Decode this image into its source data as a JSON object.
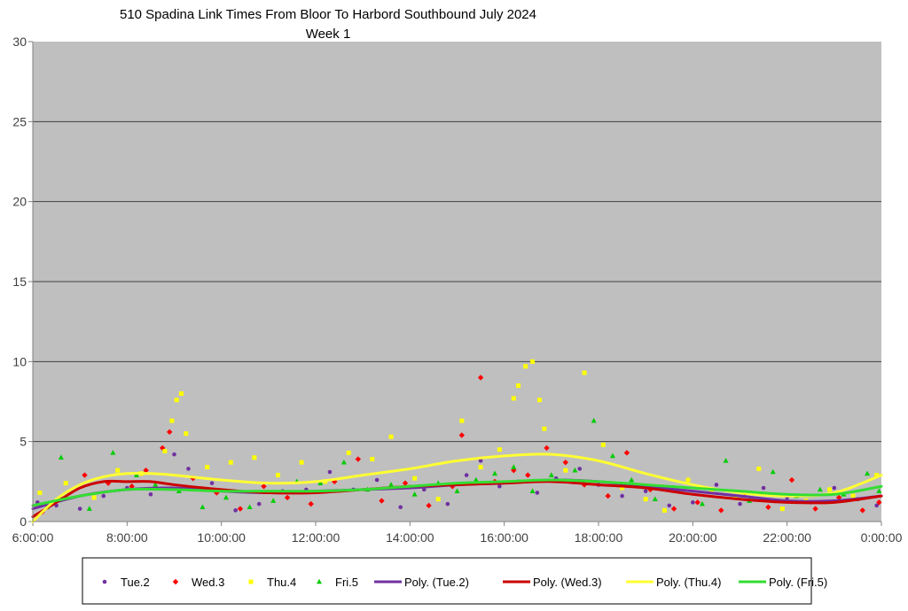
{
  "chart_data": {
    "type": "scatter",
    "title": "510 Spadina Link Times From Bloor To Harbord Southbound July 2024",
    "subtitle": "Week 1",
    "xlabel": "",
    "ylabel": "",
    "xlim": [
      6,
      24
    ],
    "ylim": [
      0,
      30
    ],
    "x_ticks": [
      "6:00:00",
      "8:00:00",
      "10:00:00",
      "12:00:00",
      "14:00:00",
      "16:00:00",
      "18:00:00",
      "20:00:00",
      "22:00:00",
      "0:00:00"
    ],
    "x_tick_values": [
      6,
      8,
      10,
      12,
      14,
      16,
      18,
      20,
      22,
      24
    ],
    "y_ticks": [
      "0",
      "5",
      "10",
      "15",
      "20",
      "25",
      "30"
    ],
    "y_tick_values": [
      0,
      5,
      10,
      15,
      20,
      25,
      30
    ],
    "grid": "horizontal",
    "legend_position": "bottom",
    "series": [
      {
        "name": "Tue.2",
        "marker": "circle",
        "color": "#7030A0",
        "points": [
          [
            6.1,
            1.2
          ],
          [
            6.5,
            1.0
          ],
          [
            7.0,
            0.8
          ],
          [
            7.5,
            1.6
          ],
          [
            8.0,
            2.1
          ],
          [
            8.5,
            1.7
          ],
          [
            9.0,
            4.2
          ],
          [
            9.3,
            3.3
          ],
          [
            9.8,
            2.4
          ],
          [
            10.3,
            0.7
          ],
          [
            10.8,
            1.1
          ],
          [
            11.3,
            1.9
          ],
          [
            11.8,
            2.0
          ],
          [
            12.3,
            3.1
          ],
          [
            12.8,
            2.0
          ],
          [
            13.3,
            2.6
          ],
          [
            13.8,
            0.9
          ],
          [
            14.3,
            2.0
          ],
          [
            14.8,
            1.1
          ],
          [
            15.2,
            2.9
          ],
          [
            15.5,
            3.8
          ],
          [
            15.9,
            2.2
          ],
          [
            16.3,
            2.5
          ],
          [
            16.7,
            1.8
          ],
          [
            17.1,
            2.7
          ],
          [
            17.6,
            3.3
          ],
          [
            18.0,
            2.3
          ],
          [
            18.5,
            1.6
          ],
          [
            19.0,
            1.9
          ],
          [
            19.5,
            1.0
          ],
          [
            20.0,
            1.2
          ],
          [
            20.5,
            2.3
          ],
          [
            21.0,
            1.1
          ],
          [
            21.5,
            2.1
          ],
          [
            22.0,
            1.5
          ],
          [
            22.5,
            1.2
          ],
          [
            23.0,
            2.1
          ],
          [
            23.5,
            1.4
          ],
          [
            23.9,
            1.0
          ]
        ],
        "trend": [
          [
            6,
            0.8
          ],
          [
            7,
            1.6
          ],
          [
            8,
            2.0
          ],
          [
            9,
            2.1
          ],
          [
            10,
            1.9
          ],
          [
            11,
            1.8
          ],
          [
            12,
            1.9
          ],
          [
            13,
            2.0
          ],
          [
            14,
            2.1
          ],
          [
            15,
            2.3
          ],
          [
            16,
            2.4
          ],
          [
            17,
            2.6
          ],
          [
            18,
            2.5
          ],
          [
            19,
            2.2
          ],
          [
            20,
            1.9
          ],
          [
            21,
            1.6
          ],
          [
            22,
            1.3
          ],
          [
            23,
            1.3
          ],
          [
            24,
            1.6
          ]
        ]
      },
      {
        "name": "Wed.3",
        "marker": "diamond",
        "color": "#FF0000",
        "points": [
          [
            6.2,
            0.6
          ],
          [
            6.6,
            1.4
          ],
          [
            7.1,
            2.9
          ],
          [
            7.6,
            2.4
          ],
          [
            8.1,
            2.2
          ],
          [
            8.4,
            3.2
          ],
          [
            8.75,
            4.6
          ],
          [
            8.9,
            5.6
          ],
          [
            9.4,
            2.7
          ],
          [
            9.9,
            1.8
          ],
          [
            10.4,
            0.8
          ],
          [
            10.9,
            2.2
          ],
          [
            11.4,
            1.5
          ],
          [
            11.9,
            1.1
          ],
          [
            12.4,
            2.5
          ],
          [
            12.9,
            3.9
          ],
          [
            13.4,
            1.3
          ],
          [
            13.9,
            2.4
          ],
          [
            14.4,
            1.0
          ],
          [
            14.9,
            2.2
          ],
          [
            15.1,
            5.4
          ],
          [
            15.5,
            9.0
          ],
          [
            15.8,
            2.5
          ],
          [
            16.2,
            3.2
          ],
          [
            16.5,
            2.9
          ],
          [
            16.9,
            4.6
          ],
          [
            17.3,
            3.7
          ],
          [
            17.7,
            2.3
          ],
          [
            18.2,
            1.6
          ],
          [
            18.6,
            4.3
          ],
          [
            19.1,
            2.0
          ],
          [
            19.6,
            0.8
          ],
          [
            20.1,
            1.2
          ],
          [
            20.6,
            0.7
          ],
          [
            21.1,
            1.8
          ],
          [
            21.6,
            0.9
          ],
          [
            22.1,
            2.6
          ],
          [
            22.6,
            0.8
          ],
          [
            23.1,
            1.5
          ],
          [
            23.6,
            0.7
          ],
          [
            23.95,
            1.2
          ]
        ],
        "trend": [
          [
            6,
            0.3
          ],
          [
            6.5,
            1.2
          ],
          [
            7,
            2.1
          ],
          [
            7.5,
            2.5
          ],
          [
            8,
            2.5
          ],
          [
            8.5,
            2.5
          ],
          [
            9,
            2.3
          ],
          [
            10,
            2.0
          ],
          [
            11,
            1.8
          ],
          [
            12,
            1.8
          ],
          [
            13,
            2.0
          ],
          [
            14,
            2.2
          ],
          [
            15,
            2.3
          ],
          [
            16,
            2.4
          ],
          [
            17,
            2.5
          ],
          [
            18,
            2.3
          ],
          [
            19,
            2.1
          ],
          [
            20,
            1.7
          ],
          [
            21,
            1.4
          ],
          [
            22,
            1.2
          ],
          [
            23,
            1.2
          ],
          [
            24,
            1.6
          ]
        ]
      },
      {
        "name": "Thu.4",
        "marker": "square",
        "color": "#FFFF00",
        "points": [
          [
            6.15,
            1.8
          ],
          [
            6.7,
            2.4
          ],
          [
            7.3,
            1.5
          ],
          [
            7.8,
            3.2
          ],
          [
            8.3,
            3.0
          ],
          [
            8.8,
            4.4
          ],
          [
            8.95,
            6.3
          ],
          [
            9.05,
            7.6
          ],
          [
            9.15,
            8.0
          ],
          [
            9.25,
            5.5
          ],
          [
            9.7,
            3.4
          ],
          [
            10.2,
            3.7
          ],
          [
            10.7,
            4.0
          ],
          [
            11.2,
            2.9
          ],
          [
            11.7,
            3.7
          ],
          [
            12.2,
            2.5
          ],
          [
            12.7,
            4.3
          ],
          [
            13.2,
            3.9
          ],
          [
            13.6,
            5.3
          ],
          [
            14.1,
            2.7
          ],
          [
            14.6,
            1.4
          ],
          [
            15.1,
            6.3
          ],
          [
            15.5,
            3.4
          ],
          [
            15.9,
            4.5
          ],
          [
            16.2,
            7.7
          ],
          [
            16.3,
            8.5
          ],
          [
            16.45,
            9.7
          ],
          [
            16.6,
            10.0
          ],
          [
            16.75,
            7.6
          ],
          [
            16.85,
            5.8
          ],
          [
            17.3,
            3.2
          ],
          [
            17.7,
            9.3
          ],
          [
            18.1,
            4.8
          ],
          [
            18.5,
            2.1
          ],
          [
            19.0,
            1.4
          ],
          [
            19.4,
            0.7
          ],
          [
            19.9,
            2.6
          ],
          [
            20.4,
            2.0
          ],
          [
            20.9,
            1.5
          ],
          [
            21.4,
            3.3
          ],
          [
            21.9,
            0.8
          ],
          [
            22.4,
            1.3
          ],
          [
            22.9,
            2.0
          ],
          [
            23.4,
            1.6
          ],
          [
            23.9,
            2.9
          ]
        ],
        "trend": [
          [
            6,
            0
          ],
          [
            6.5,
            1.4
          ],
          [
            7,
            2.3
          ],
          [
            7.5,
            2.8
          ],
          [
            8,
            3.0
          ],
          [
            8.5,
            3.0
          ],
          [
            9,
            2.9
          ],
          [
            10,
            2.6
          ],
          [
            11,
            2.4
          ],
          [
            12,
            2.5
          ],
          [
            13,
            2.9
          ],
          [
            14,
            3.3
          ],
          [
            15,
            3.8
          ],
          [
            16,
            4.1
          ],
          [
            17,
            4.2
          ],
          [
            18,
            3.8
          ],
          [
            19,
            3.0
          ],
          [
            20,
            2.3
          ],
          [
            21,
            1.8
          ],
          [
            22,
            1.6
          ],
          [
            23,
            1.8
          ],
          [
            24,
            2.9
          ]
        ]
      },
      {
        "name": "Fri.5",
        "marker": "triangle",
        "color": "#00CC00",
        "points": [
          [
            6.3,
            0.9
          ],
          [
            6.6,
            4.0
          ],
          [
            7.2,
            0.8
          ],
          [
            7.7,
            4.3
          ],
          [
            8.2,
            2.9
          ],
          [
            8.6,
            2.3
          ],
          [
            9.1,
            1.9
          ],
          [
            9.6,
            0.9
          ],
          [
            10.1,
            1.5
          ],
          [
            10.6,
            0.9
          ],
          [
            11.1,
            1.3
          ],
          [
            11.6,
            2.5
          ],
          [
            12.1,
            2.4
          ],
          [
            12.6,
            3.7
          ],
          [
            13.1,
            2.0
          ],
          [
            13.6,
            2.3
          ],
          [
            14.1,
            1.7
          ],
          [
            14.6,
            2.4
          ],
          [
            15.0,
            1.9
          ],
          [
            15.4,
            2.6
          ],
          [
            15.8,
            3.0
          ],
          [
            16.2,
            3.4
          ],
          [
            16.6,
            1.9
          ],
          [
            17.0,
            2.9
          ],
          [
            17.5,
            3.2
          ],
          [
            17.9,
            6.3
          ],
          [
            18.3,
            4.1
          ],
          [
            18.7,
            2.6
          ],
          [
            19.2,
            1.4
          ],
          [
            19.7,
            1.9
          ],
          [
            20.2,
            1.1
          ],
          [
            20.7,
            3.8
          ],
          [
            21.2,
            1.3
          ],
          [
            21.7,
            3.1
          ],
          [
            22.2,
            1.6
          ],
          [
            22.7,
            2.0
          ],
          [
            23.2,
            1.7
          ],
          [
            23.7,
            3.0
          ],
          [
            23.95,
            1.9
          ]
        ],
        "trend": [
          [
            6,
            1.0
          ],
          [
            7,
            1.6
          ],
          [
            8,
            2.0
          ],
          [
            9,
            2.0
          ],
          [
            10,
            1.9
          ],
          [
            11,
            1.9
          ],
          [
            12,
            1.9
          ],
          [
            13,
            2.0
          ],
          [
            14,
            2.2
          ],
          [
            15,
            2.4
          ],
          [
            16,
            2.5
          ],
          [
            17,
            2.6
          ],
          [
            18,
            2.5
          ],
          [
            19,
            2.3
          ],
          [
            20,
            2.1
          ],
          [
            21,
            1.9
          ],
          [
            22,
            1.7
          ],
          [
            23,
            1.7
          ],
          [
            24,
            2.2
          ]
        ]
      }
    ],
    "legend": [
      {
        "label": "Tue.2",
        "kind": "marker",
        "marker": "circle",
        "color": "#7030A0"
      },
      {
        "label": "Wed.3",
        "kind": "marker",
        "marker": "diamond",
        "color": "#FF0000"
      },
      {
        "label": "Thu.4",
        "kind": "marker",
        "marker": "square",
        "color": "#FFFF00"
      },
      {
        "label": "Fri.5",
        "kind": "marker",
        "marker": "triangle",
        "color": "#00CC00"
      },
      {
        "label": "Poly. (Tue.2)",
        "kind": "line",
        "color": "#7030A0"
      },
      {
        "label": "Poly. (Wed.3)",
        "kind": "line",
        "color": "#CC0000"
      },
      {
        "label": "Poly. (Thu.4)",
        "kind": "line",
        "color": "#FFFF33"
      },
      {
        "label": "Poly. (Fri.5)",
        "kind": "line",
        "color": "#33DD33"
      }
    ]
  }
}
